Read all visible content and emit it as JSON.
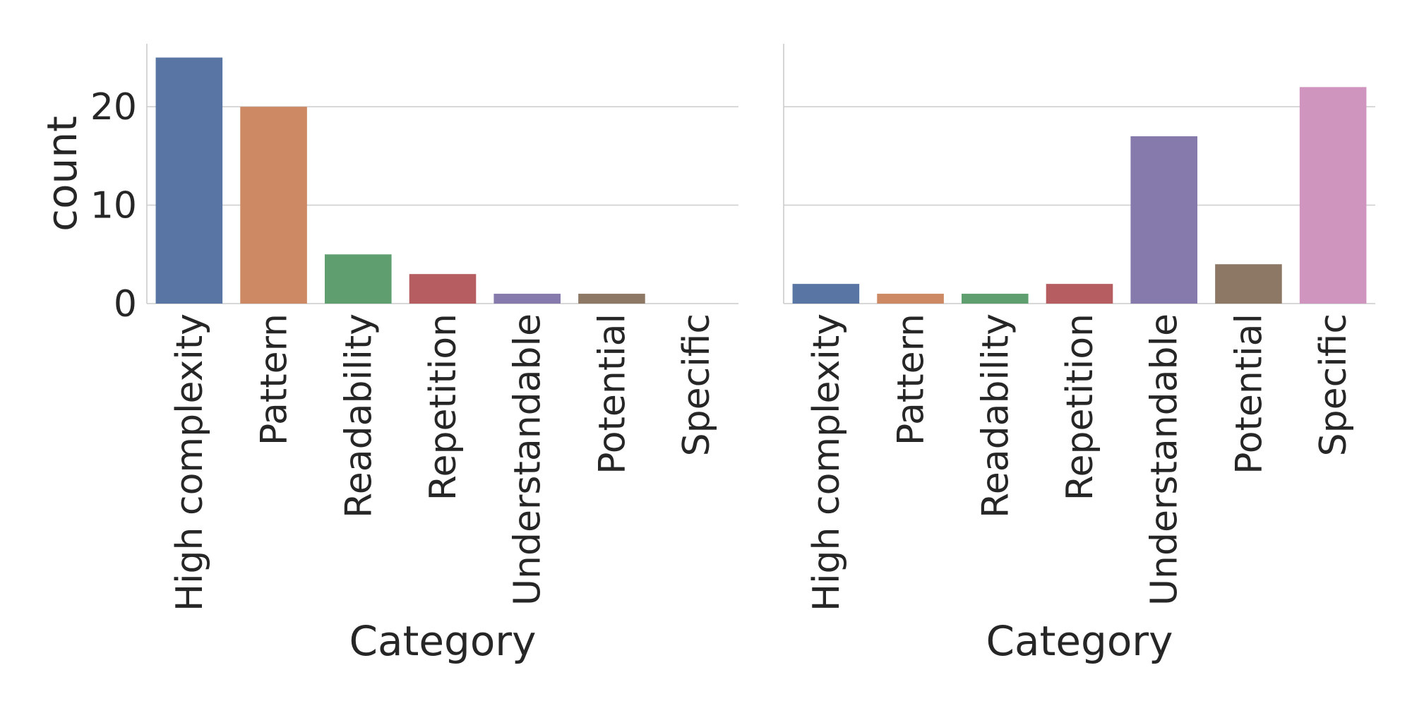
{
  "chart_data": [
    {
      "type": "bar",
      "categories": [
        "High complexity",
        "Pattern",
        "Readability",
        "Repetition",
        "Understandable",
        "Potential",
        "Specific"
      ],
      "values": [
        25,
        20,
        5,
        3,
        1,
        1,
        0
      ],
      "colors": [
        "#5875a4",
        "#cc8963",
        "#5f9e6e",
        "#b55d60",
        "#857aab",
        "#8d7866",
        "#d095bf"
      ],
      "xlabel": "Category",
      "ylabel": "count",
      "yticks": [
        0,
        10,
        20
      ],
      "ylim": [
        0,
        26.4
      ],
      "grid": true
    },
    {
      "type": "bar",
      "categories": [
        "High complexity",
        "Pattern",
        "Readability",
        "Repetition",
        "Understandable",
        "Potential",
        "Specific"
      ],
      "values": [
        2,
        1,
        1,
        2,
        17,
        4,
        22
      ],
      "colors": [
        "#5875a4",
        "#cc8963",
        "#5f9e6e",
        "#b55d60",
        "#857aab",
        "#8d7866",
        "#d095bf"
      ],
      "xlabel": "Category",
      "ylabel": "",
      "yticks": [
        0,
        10,
        20
      ],
      "ylim": [
        0,
        26.4
      ],
      "grid": true
    }
  ]
}
